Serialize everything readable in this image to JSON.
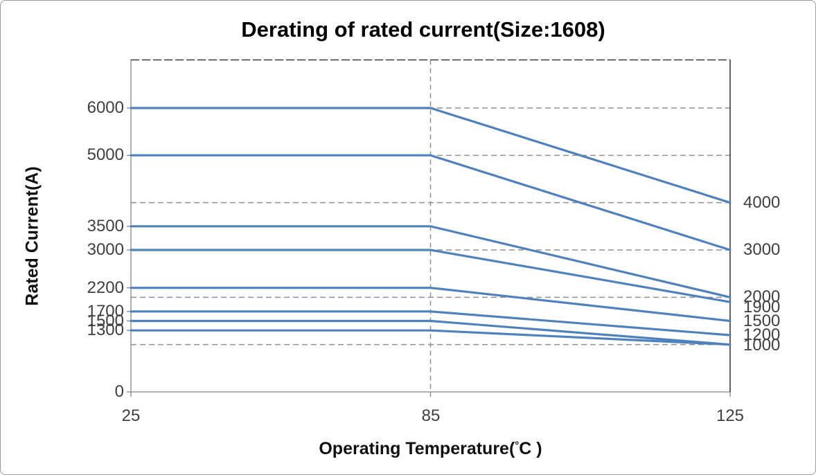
{
  "window": {
    "title": "Derating of rated current(Size:1608)"
  },
  "chart_data": {
    "type": "line",
    "title": "Derating of rated current(Size:1608)",
    "ylabel": "Rated Current(A)",
    "xlabel_parts": {
      "pre": "Operating Temperature(",
      "degree": "°",
      "post": "C )"
    },
    "x_axis_type": "category",
    "x_categories": [
      "25",
      "85",
      "125"
    ],
    "series": [
      {
        "name": "6000A",
        "values": [
          6000,
          6000,
          4000
        ]
      },
      {
        "name": "5000A",
        "values": [
          5000,
          5000,
          3000
        ]
      },
      {
        "name": "3500A",
        "values": [
          3500,
          3500,
          2000
        ]
      },
      {
        "name": "3000A",
        "values": [
          3000,
          3000,
          1900
        ]
      },
      {
        "name": "2200A",
        "values": [
          2200,
          2200,
          1500
        ]
      },
      {
        "name": "1700A",
        "values": [
          1700,
          1700,
          1200
        ]
      },
      {
        "name": "1500A",
        "values": [
          1500,
          1500,
          1000
        ]
      },
      {
        "name": "1300A",
        "values": [
          1300,
          1300,
          1000
        ]
      }
    ],
    "left_axis_labels": [
      6000,
      5000,
      3500,
      3000,
      2200,
      1700,
      1500,
      1300,
      0
    ],
    "right_value_labels": [
      4000,
      3000,
      2000,
      1900,
      1500,
      1200,
      1000
    ],
    "h_gridline_values": [
      6000,
      5000,
      4000,
      3000,
      2000,
      1000
    ],
    "v_gridline_category": "85",
    "ylim": [
      0,
      7000
    ],
    "grid_style": "dashed",
    "legend": "none",
    "colors": {
      "series_line": "#4f81bd",
      "gridline": "#909090",
      "axis_gray": "#858585",
      "axis_dark": "#3a3a3a",
      "tick_text": "#3f3f3f",
      "title_text": "#000000"
    }
  }
}
